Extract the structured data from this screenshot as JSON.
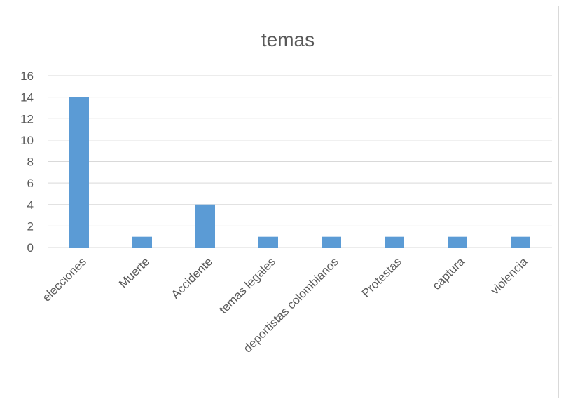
{
  "chart_data": {
    "type": "bar",
    "title": "temas",
    "xlabel": "",
    "ylabel": "",
    "categories": [
      "elecciones",
      "Muerte",
      "Accidente",
      "temas legales",
      "deportistas colombianos",
      "Protestas",
      "captura",
      "violencia"
    ],
    "values": [
      14,
      1,
      4,
      1,
      1,
      1,
      1,
      1
    ],
    "ylim": [
      0,
      16
    ],
    "yticks": [
      0,
      2,
      4,
      6,
      8,
      10,
      12,
      14,
      16
    ],
    "grid": true,
    "legend": "none",
    "colors": {
      "bar": "#5b9bd5",
      "grid": "#d9d9d9",
      "text": "#595959",
      "border": "#d9d9d9"
    }
  }
}
